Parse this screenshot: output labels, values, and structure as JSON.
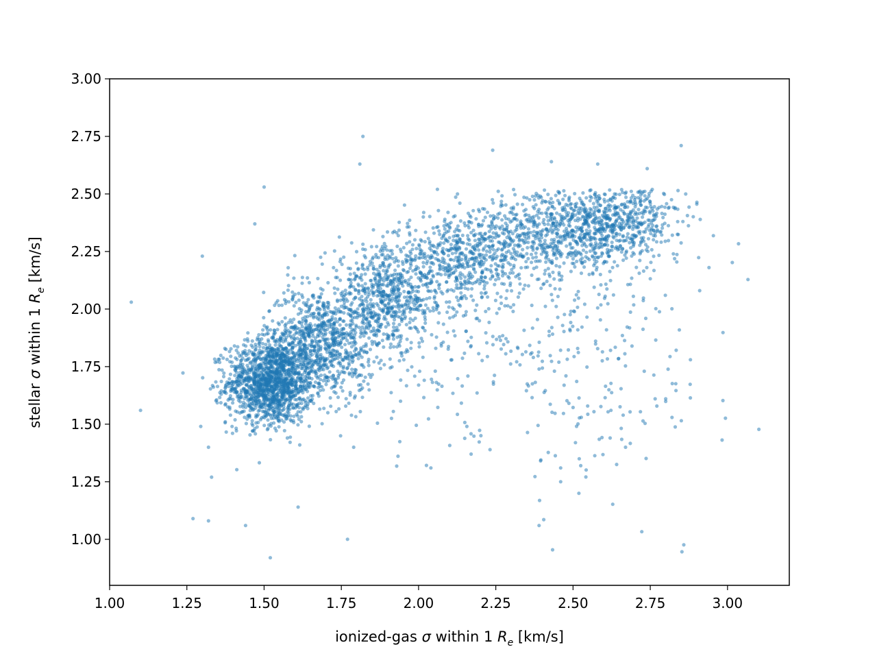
{
  "chart_data": {
    "type": "scatter",
    "title": "",
    "xlabel": "ionized-gas σ within 1 R_e [km/s]",
    "ylabel": "stellar σ within 1 R_e [km/s]",
    "xlim": [
      1.0,
      3.2
    ],
    "ylim": [
      0.8,
      3.0
    ],
    "xticks": [
      "1.00",
      "1.25",
      "1.50",
      "1.75",
      "2.00",
      "2.25",
      "2.50",
      "2.75",
      "3.00"
    ],
    "yticks": [
      "1.00",
      "1.25",
      "1.50",
      "1.75",
      "2.00",
      "2.25",
      "2.50",
      "2.75",
      "3.00"
    ],
    "grid": false,
    "marker_color": "#1f77b4",
    "marker_alpha": 0.5,
    "sample_note_is_not_shown": false,
    "outliers": [
      {
        "x": 1.07,
        "y": 2.03
      },
      {
        "x": 1.1,
        "y": 1.56
      },
      {
        "x": 1.27,
        "y": 1.09
      },
      {
        "x": 1.3,
        "y": 2.23
      },
      {
        "x": 1.32,
        "y": 1.08
      },
      {
        "x": 1.32,
        "y": 1.4
      },
      {
        "x": 1.33,
        "y": 1.27
      },
      {
        "x": 1.44,
        "y": 1.06
      },
      {
        "x": 1.47,
        "y": 2.37
      },
      {
        "x": 1.5,
        "y": 2.53
      },
      {
        "x": 1.52,
        "y": 0.92
      },
      {
        "x": 1.61,
        "y": 1.14
      },
      {
        "x": 1.77,
        "y": 1.0
      },
      {
        "x": 1.79,
        "y": 1.4
      },
      {
        "x": 1.81,
        "y": 2.63
      },
      {
        "x": 1.82,
        "y": 2.75
      },
      {
        "x": 2.04,
        "y": 1.31
      },
      {
        "x": 2.17,
        "y": 1.37
      },
      {
        "x": 2.24,
        "y": 2.69
      },
      {
        "x": 2.39,
        "y": 1.06
      },
      {
        "x": 2.43,
        "y": 2.64
      },
      {
        "x": 2.46,
        "y": 1.25
      },
      {
        "x": 2.46,
        "y": 1.31
      },
      {
        "x": 2.52,
        "y": 1.35
      },
      {
        "x": 2.58,
        "y": 2.63
      },
      {
        "x": 2.67,
        "y": 1.4
      },
      {
        "x": 2.74,
        "y": 2.61
      },
      {
        "x": 2.85,
        "y": 2.71
      },
      {
        "x": 2.88,
        "y": 1.78
      },
      {
        "x": 2.94,
        "y": 2.18
      },
      {
        "x": 2.91,
        "y": 2.08
      },
      {
        "x": 2.8,
        "y": 1.61
      },
      {
        "x": 2.62,
        "y": 1.44
      }
    ],
    "clusters": [
      {
        "cx": 1.52,
        "cy": 1.68,
        "sx": 0.07,
        "sy": 0.09,
        "n": 1400
      },
      {
        "cx": 1.68,
        "cy": 1.85,
        "sx": 0.09,
        "sy": 0.12,
        "n": 900
      },
      {
        "cx": 1.9,
        "cy": 2.05,
        "sx": 0.1,
        "sy": 0.11,
        "n": 700
      },
      {
        "cx": 2.15,
        "cy": 2.22,
        "sx": 0.1,
        "sy": 0.1,
        "n": 550
      },
      {
        "cx": 2.45,
        "cy": 2.33,
        "sx": 0.14,
        "sy": 0.09,
        "n": 650
      },
      {
        "cx": 2.65,
        "cy": 2.38,
        "sx": 0.1,
        "sy": 0.08,
        "n": 450
      },
      {
        "cx": 2.55,
        "cy": 1.85,
        "sx": 0.2,
        "sy": 0.28,
        "n": 260
      },
      {
        "cx": 2.05,
        "cy": 1.75,
        "sx": 0.18,
        "sy": 0.18,
        "n": 90
      }
    ]
  }
}
